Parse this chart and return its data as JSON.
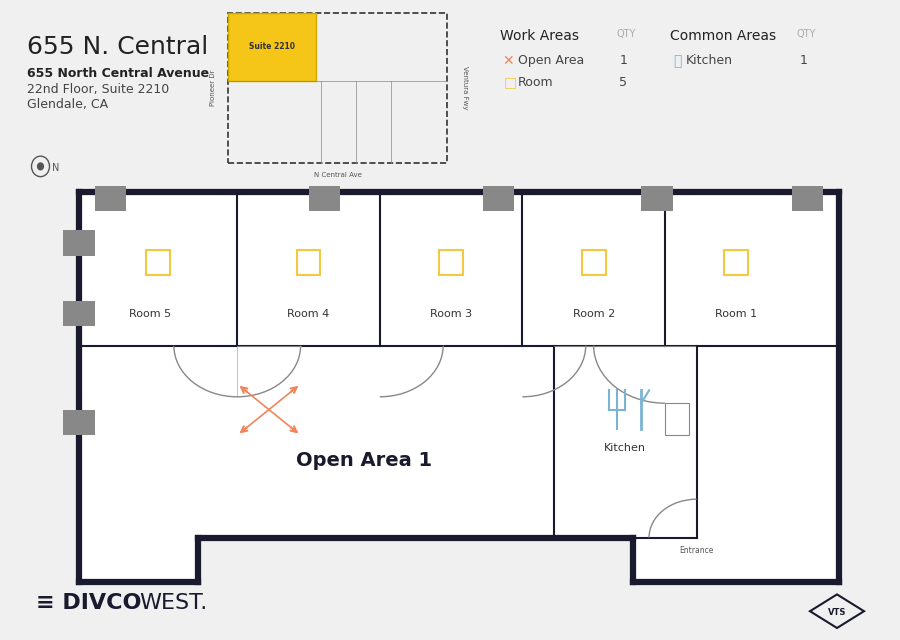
{
  "bg_color": "#f0f0f0",
  "floor_bg": "#ffffff",
  "wall_color": "#1a1a2e",
  "wall_lw": 4.5,
  "thin_wall_lw": 1.5,
  "title": "655 N. Central",
  "subtitle1": "655 North Central Avenue",
  "subtitle2": "22nd Floor, Suite 2210",
  "subtitle3": "Glendale, CA",
  "rooms": [
    "Room 1",
    "Room 2",
    "Room 3",
    "Room 4",
    "Room 5"
  ],
  "open_area": "Open Area 1",
  "kitchen_label": "Kitchen",
  "entrance_label": "Entrance",
  "room_icon_color": "#f5c842",
  "open_area_icon_color": "#f0855a",
  "kitchen_icon_color": "#7ab3d4",
  "door_arc_color": "#888888",
  "glass_color": "#c8d8e8",
  "column_color": "#aaaaaa",
  "divider_color": "#cccccc"
}
